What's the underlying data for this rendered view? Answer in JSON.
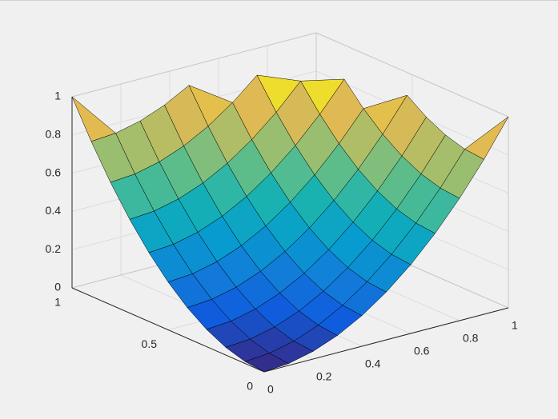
{
  "chart_data": {
    "type": "surface",
    "x": [
      0,
      0.1,
      0.2,
      0.3,
      0.4,
      0.5,
      0.6,
      0.7,
      0.8,
      0.9,
      1
    ],
    "y": [
      0,
      0.1,
      0.2,
      0.3,
      0.4,
      0.5,
      0.6,
      0.7,
      0.8,
      0.9,
      1
    ],
    "z": [
      [
        0,
        0.01,
        0.04,
        0.09,
        0.16,
        0.25,
        0.36,
        0.49,
        0.64,
        0.81,
        1
      ],
      [
        0.01,
        0.02,
        0.05,
        0.1,
        0.17,
        0.26,
        0.37,
        0.5,
        0.65,
        0.82,
        null
      ],
      [
        0.04,
        0.05,
        0.08,
        0.13,
        0.2,
        0.29,
        0.4,
        0.53,
        0.68,
        0.85,
        null
      ],
      [
        0.09,
        0.1,
        0.13,
        0.18,
        0.25,
        0.34,
        0.45,
        0.58,
        0.73,
        0.9,
        null
      ],
      [
        0.16,
        0.17,
        0.2,
        0.25,
        0.32,
        0.41,
        0.52,
        0.65,
        0.8,
        0.97,
        null
      ],
      [
        0.25,
        0.26,
        0.29,
        0.34,
        0.41,
        0.5,
        0.61,
        0.74,
        0.89,
        null,
        null
      ],
      [
        0.36,
        0.37,
        0.4,
        0.45,
        0.52,
        0.61,
        0.72,
        0.85,
        1,
        null,
        null
      ],
      [
        0.49,
        0.5,
        0.53,
        0.58,
        0.65,
        0.74,
        0.85,
        0.98,
        null,
        null,
        null
      ],
      [
        0.64,
        0.65,
        0.68,
        0.73,
        0.8,
        0.89,
        1,
        null,
        null,
        null,
        null
      ],
      [
        0.81,
        0.82,
        0.85,
        0.9,
        0.97,
        null,
        null,
        null,
        null,
        null,
        null
      ],
      [
        1,
        null,
        null,
        null,
        null,
        null,
        null,
        null,
        null,
        null,
        null
      ]
    ],
    "xlim": [
      0,
      1
    ],
    "ylim": [
      0,
      1
    ],
    "zlim": [
      0,
      1
    ],
    "xticks": [
      0,
      0.2,
      0.4,
      0.6,
      0.8,
      1
    ],
    "yticks": [
      0,
      0.5,
      1
    ],
    "zticks": [
      0,
      0.2,
      0.4,
      0.6,
      0.8,
      1
    ],
    "grid": true,
    "colormap": "parula",
    "edgecolor": "#000000"
  }
}
